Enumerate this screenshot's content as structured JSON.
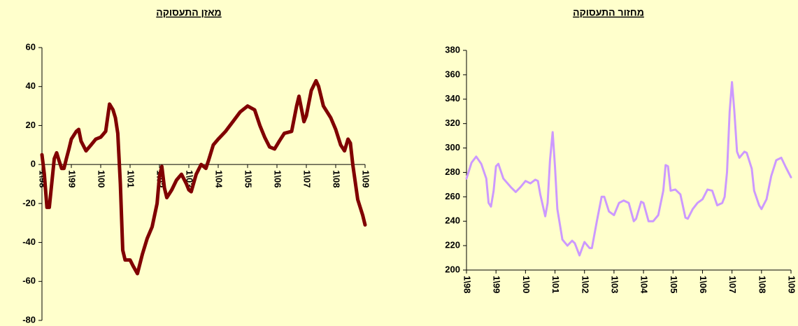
{
  "chart_data": [
    {
      "type": "line",
      "title": "מאזן התעסוקה",
      "xlim": [
        1998,
        2009
      ],
      "ylim": [
        -80,
        60
      ],
      "yticks": [
        -80,
        -60,
        -40,
        -20,
        0,
        20,
        40,
        60
      ],
      "xticks": [
        {
          "value": 1998,
          "label": "1\\98"
        },
        {
          "value": 1999,
          "label": "1\\99"
        },
        {
          "value": 2000,
          "label": "1\\00"
        },
        {
          "value": 2001,
          "label": "1\\01"
        },
        {
          "value": 2002,
          "label": "1\\02"
        },
        {
          "value": 2003,
          "label": "1\\03"
        },
        {
          "value": 2004,
          "label": "1\\04"
        },
        {
          "value": 2005,
          "label": "1\\05"
        },
        {
          "value": 2006,
          "label": "1\\06"
        },
        {
          "value": 2007,
          "label": "1\\07"
        },
        {
          "value": 2008,
          "label": "1\\08"
        },
        {
          "value": 2009,
          "label": "1\\09"
        }
      ],
      "series": [
        {
          "color": "#800000",
          "x": [
            1998.0,
            1998.08,
            1998.17,
            1998.25,
            1998.33,
            1998.42,
            1998.5,
            1998.58,
            1998.67,
            1998.75,
            1998.83,
            1998.92,
            1999.0,
            1999.17,
            1999.25,
            1999.33,
            1999.5,
            1999.67,
            1999.83,
            2000.0,
            2000.17,
            2000.3,
            2000.42,
            2000.5,
            2000.58,
            2000.67,
            2000.75,
            2000.83,
            2001.0,
            2001.1,
            2001.25,
            2001.42,
            2001.58,
            2001.75,
            2001.92,
            2002.0,
            2002.08,
            2002.17,
            2002.25,
            2002.42,
            2002.58,
            2002.75,
            2002.92,
            2003.0,
            2003.08,
            2003.25,
            2003.42,
            2003.58,
            2003.67,
            2003.83,
            2004.0,
            2004.25,
            2004.5,
            2004.75,
            2005.0,
            2005.24,
            2005.42,
            2005.58,
            2005.75,
            2005.92,
            2006.08,
            2006.25,
            2006.5,
            2006.67,
            2006.75,
            2006.92,
            2007.0,
            2007.17,
            2007.33,
            2007.42,
            2007.58,
            2007.83,
            2008.0,
            2008.17,
            2008.3,
            2008.42,
            2008.5,
            2008.58,
            2008.75,
            2008.92,
            2009.0
          ],
          "values": [
            5,
            -5,
            -22,
            -22,
            -10,
            3,
            6,
            2,
            -2,
            -2,
            3,
            8,
            13,
            17,
            18,
            12,
            7,
            10,
            13,
            14,
            17,
            31,
            28,
            24,
            16,
            -10,
            -44,
            -49,
            -49,
            -52,
            -56,
            -46,
            -38,
            -32,
            -20,
            -6,
            -1,
            -12,
            -17,
            -13,
            -8,
            -5,
            -10,
            -13,
            -14,
            -5,
            0,
            -2,
            2,
            10,
            13,
            17,
            22,
            27,
            30,
            28,
            20,
            14,
            9,
            8,
            12,
            16,
            17,
            30,
            35,
            22,
            25,
            38,
            43,
            40,
            30,
            24,
            18,
            10,
            7,
            13,
            11,
            0,
            -18,
            -26,
            -31
          ]
        }
      ]
    },
    {
      "type": "line",
      "title": "מחזור התעסוקה",
      "xlim": [
        1998,
        2009
      ],
      "ylim": [
        200,
        380
      ],
      "yticks": [
        200,
        220,
        240,
        260,
        280,
        300,
        320,
        340,
        360,
        380
      ],
      "xticks": [
        {
          "value": 1998,
          "label": "1\\98"
        },
        {
          "value": 1999,
          "label": "1\\99"
        },
        {
          "value": 2000,
          "label": "1\\00"
        },
        {
          "value": 2001,
          "label": "1\\01"
        },
        {
          "value": 2002,
          "label": "1\\02"
        },
        {
          "value": 2003,
          "label": "1\\03"
        },
        {
          "value": 2004,
          "label": "1\\04"
        },
        {
          "value": 2005,
          "label": "1\\05"
        },
        {
          "value": 2006,
          "label": "1\\06"
        },
        {
          "value": 2007,
          "label": "1\\07"
        },
        {
          "value": 2008,
          "label": "1\\08"
        },
        {
          "value": 2009,
          "label": "1\\09"
        }
      ],
      "series": [
        {
          "color": "#cc99ff",
          "x": [
            1998.0,
            1998.17,
            1998.33,
            1998.5,
            1998.67,
            1998.75,
            1998.83,
            1998.92,
            1999.0,
            1999.08,
            1999.25,
            1999.5,
            1999.67,
            1999.83,
            2000.0,
            2000.17,
            2000.33,
            2000.42,
            2000.5,
            2000.67,
            2000.75,
            2000.83,
            2000.92,
            2001.0,
            2001.08,
            2001.25,
            2001.42,
            2001.58,
            2001.67,
            2001.83,
            2001.92,
            2002.0,
            2002.17,
            2002.25,
            2002.42,
            2002.58,
            2002.67,
            2002.83,
            2003.0,
            2003.17,
            2003.33,
            2003.5,
            2003.67,
            2003.75,
            2003.92,
            2004.0,
            2004.17,
            2004.33,
            2004.5,
            2004.67,
            2004.75,
            2004.83,
            2004.92,
            2005.08,
            2005.25,
            2005.42,
            2005.5,
            2005.67,
            2005.83,
            2006.0,
            2006.17,
            2006.33,
            2006.5,
            2006.67,
            2006.75,
            2006.83,
            2006.92,
            2007.0,
            2007.08,
            2007.17,
            2007.25,
            2007.42,
            2007.5,
            2007.67,
            2007.75,
            2007.92,
            2008.0,
            2008.17,
            2008.33,
            2008.5,
            2008.67,
            2008.83,
            2009.0
          ],
          "values": [
            275,
            288,
            293,
            287,
            275,
            255,
            252,
            265,
            285,
            287,
            275,
            268,
            264,
            268,
            273,
            271,
            274,
            273,
            262,
            244,
            255,
            290,
            313,
            285,
            250,
            225,
            220,
            224,
            222,
            212,
            218,
            223,
            218,
            218,
            240,
            260,
            260,
            248,
            245,
            255,
            257,
            255,
            240,
            242,
            256,
            255,
            240,
            240,
            245,
            265,
            286,
            285,
            265,
            266,
            262,
            243,
            242,
            250,
            255,
            258,
            266,
            265,
            253,
            255,
            260,
            280,
            330,
            354,
            330,
            297,
            292,
            297,
            296,
            283,
            265,
            253,
            250,
            258,
            277,
            290,
            292,
            284,
            276
          ]
        }
      ]
    }
  ]
}
